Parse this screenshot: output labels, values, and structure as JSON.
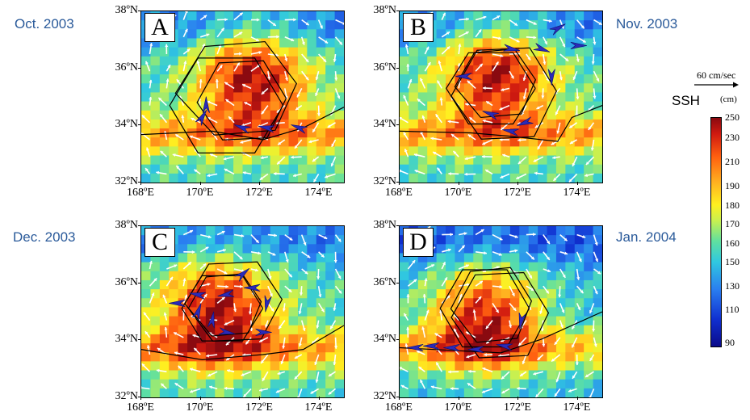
{
  "panels": [
    {
      "letter": "A",
      "month": "Oct. 2003"
    },
    {
      "letter": "B",
      "month": "Nov. 2003"
    },
    {
      "letter": "C",
      "month": "Dec. 2003"
    },
    {
      "letter": "D",
      "month": "Jan. 2004"
    }
  ],
  "lat_labels": [
    "38ºN",
    "36ºN",
    "34ºN",
    "32ºN"
  ],
  "lon_labels": [
    "168ºE",
    "170ºE",
    "172ºE",
    "174ºE"
  ],
  "legend": {
    "ref_vector": "60 cm/sec",
    "title": "SSH",
    "unit": "(cm)",
    "ticks": [
      "250",
      "230",
      "210",
      "190",
      "180",
      "170",
      "160",
      "150",
      "130",
      "110",
      "90"
    ]
  },
  "colors": {
    "month_text": "#2a5a9a",
    "arrow_white": "#ffffff",
    "arrow_blue": "#2a2ab8"
  }
}
